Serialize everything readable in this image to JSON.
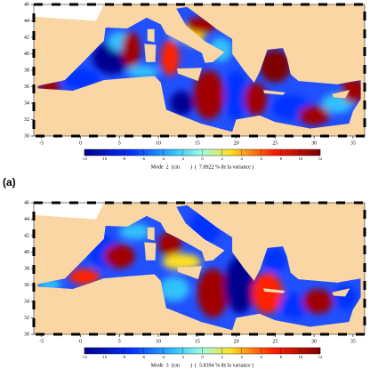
{
  "panels": [
    {
      "xticks": [
        -5,
        0,
        5,
        10,
        15,
        20,
        25,
        30,
        35
      ],
      "xlim": [
        -6,
        36.5
      ],
      "yticks": [
        30,
        32,
        34,
        36,
        38,
        40,
        42,
        44,
        46
      ],
      "ylim": [
        30,
        46
      ],
      "clim": [
        -12,
        12
      ],
      "cticks": [
        -12,
        -10,
        -8,
        -6,
        -4,
        -2,
        0,
        2,
        4,
        6,
        8,
        10,
        12
      ],
      "caption": "Mode  2  (cm        )  (  7.8922 % de la variance )",
      "label": "(a)"
    },
    {
      "xticks": [
        -5,
        0,
        5,
        10,
        15,
        20,
        25,
        30,
        35
      ],
      "xlim": [
        -6,
        36.5
      ],
      "yticks": [
        30,
        32,
        34,
        36,
        38,
        40,
        42,
        44,
        46
      ],
      "ylim": [
        30,
        46
      ],
      "clim": [
        -12,
        12
      ],
      "cticks": [
        -12,
        -10,
        -8,
        -6,
        -4,
        -2,
        0,
        2,
        4,
        6,
        8,
        10,
        12
      ],
      "caption": "Mode  3  (cm        )  (  5.8394 % de la variance )"
    }
  ]
}
